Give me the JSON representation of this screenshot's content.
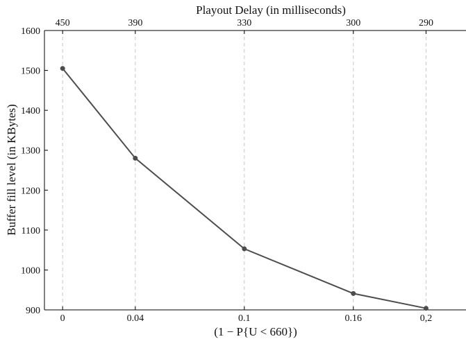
{
  "chart_data": {
    "type": "line",
    "title": "",
    "top_axis_label": "Playout Delay (in milliseconds)",
    "xlabel": "(1 − P{U < 660})",
    "ylabel": "Buffer fill level (in KBytes)",
    "x": [
      0,
      0.04,
      0.1,
      0.16,
      0.2
    ],
    "x_tick_labels": [
      "0",
      "0.04",
      "0.1",
      "0.16",
      "0,2"
    ],
    "top_tick_labels": [
      "450",
      "390",
      "330",
      "300",
      "290"
    ],
    "series": [
      {
        "name": "",
        "values": [
          1505,
          1280,
          1053,
          941,
          904
        ]
      }
    ],
    "ylim": [
      900,
      1600
    ],
    "y_ticks": [
      900,
      1000,
      1100,
      1200,
      1300,
      1400,
      1500,
      1600
    ],
    "xlim": [
      -0.01,
      0.222
    ],
    "grid": "vertical-dashed",
    "legend": "none",
    "colors": {
      "line": "#4d4d4d",
      "grid": "#c8c8c8",
      "axis": "#000000"
    }
  }
}
